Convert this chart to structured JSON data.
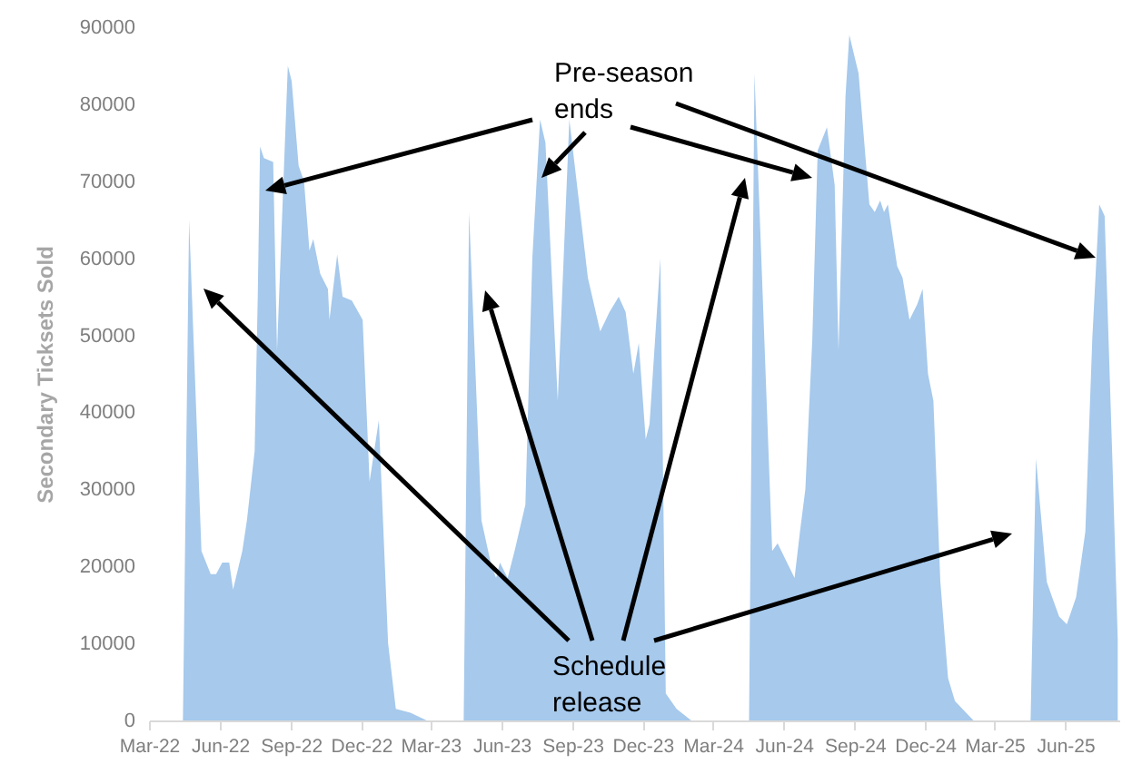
{
  "chart_data": {
    "type": "area",
    "ylabel": "Secondary Ticksets Sold",
    "annotations": [
      "Pre-season ends",
      "Schedule release"
    ],
    "x": [
      "2022-04-14",
      "2022-04-22",
      "2022-05-08",
      "2022-05-20",
      "2022-05-27",
      "2022-06-04",
      "2022-06-13",
      "2022-06-18",
      "2022-06-30",
      "2022-07-06",
      "2022-07-16",
      "2022-07-20",
      "2022-07-23",
      "2022-07-28",
      "2022-08-09",
      "2022-08-14",
      "2022-08-28",
      "2022-09-02",
      "2022-09-11",
      "2022-09-18",
      "2022-09-25",
      "2022-09-30",
      "2022-10-09",
      "2022-10-19",
      "2022-10-21",
      "2022-10-31",
      "2022-11-07",
      "2022-11-19",
      "2022-12-03",
      "2022-12-12",
      "2022-12-24",
      "2023-01-05",
      "2023-01-15",
      "2023-02-03",
      "2023-02-24",
      "2023-04-13",
      "2023-04-20",
      "2023-05-06",
      "2023-05-18",
      "2023-05-25",
      "2023-05-30",
      "2023-06-09",
      "2023-06-18",
      "2023-07-02",
      "2023-07-11",
      "2023-07-21",
      "2023-07-28",
      "2023-08-13",
      "2023-08-28",
      "2023-09-21",
      "2023-10-07",
      "2023-10-19",
      "2023-10-31",
      "2023-11-09",
      "2023-11-19",
      "2023-11-26",
      "2023-12-05",
      "2023-12-10",
      "2023-12-24",
      "2023-12-31",
      "2024-01-14",
      "2024-02-02",
      "2024-04-17",
      "2024-04-24",
      "2024-05-17",
      "2024-05-24",
      "2024-06-15",
      "2024-06-22",
      "2024-06-29",
      "2024-07-08",
      "2024-07-15",
      "2024-07-27",
      "2024-08-06",
      "2024-08-11",
      "2024-08-20",
      "2024-08-25",
      "2024-09-06",
      "2024-09-20",
      "2024-09-27",
      "2024-10-04",
      "2024-10-09",
      "2024-10-14",
      "2024-10-26",
      "2024-11-02",
      "2024-11-11",
      "2024-11-21",
      "2024-11-28",
      "2024-12-05",
      "2024-12-12",
      "2024-12-21",
      "2024-12-31",
      "2025-01-09",
      "2025-02-02",
      "2025-04-17",
      "2025-04-24",
      "2025-05-08",
      "2025-05-15",
      "2025-05-24",
      "2025-06-03",
      "2025-06-15",
      "2025-06-27",
      "2025-07-06",
      "2025-07-15",
      "2025-07-22",
      "2025-08-01",
      "2025-08-08"
    ],
    "series": [
      {
        "color": "#a6c9ec",
        "values": [
          0,
          65000,
          22000,
          19000,
          19000,
          20500,
          20500,
          17000,
          22000,
          26000,
          35000,
          55000,
          74500,
          73000,
          72500,
          48000,
          85000,
          83000,
          72000,
          70000,
          61000,
          62500,
          58000,
          56000,
          52000,
          60500,
          55000,
          54500,
          52000,
          31000,
          39000,
          10000,
          1500,
          1000,
          0,
          0,
          66000,
          26000,
          20500,
          18500,
          20500,
          18500,
          22000,
          28000,
          60000,
          78000,
          75000,
          41500,
          78000,
          57500,
          50500,
          53000,
          55000,
          53000,
          45000,
          49000,
          36500,
          38500,
          60000,
          3500,
          1500,
          0,
          0,
          84000,
          22000,
          23000,
          18500,
          24500,
          30000,
          49500,
          74000,
          77000,
          69500,
          48000,
          81000,
          89000,
          84000,
          67000,
          66000,
          67500,
          66000,
          67000,
          59000,
          57500,
          52000,
          54000,
          56000,
          45000,
          41500,
          18000,
          5500,
          2500,
          0,
          0,
          34000,
          18000,
          16000,
          13500,
          12500,
          16000,
          24500,
          49500,
          67000,
          65500,
          34000,
          10500
        ]
      }
    ],
    "xlim": [
      "2022-03-01",
      "2025-08-10"
    ],
    "xticks": [
      {
        "value": "2022-03-01",
        "label": "Mar-22"
      },
      {
        "value": "2022-06-01",
        "label": "Jun-22"
      },
      {
        "value": "2022-09-01",
        "label": "Sep-22"
      },
      {
        "value": "2022-12-01",
        "label": "Dec-22"
      },
      {
        "value": "2023-03-01",
        "label": "Mar-23"
      },
      {
        "value": "2023-06-01",
        "label": "Jun-23"
      },
      {
        "value": "2023-09-01",
        "label": "Sep-23"
      },
      {
        "value": "2023-12-01",
        "label": "Dec-23"
      },
      {
        "value": "2024-03-01",
        "label": "Mar-24"
      },
      {
        "value": "2024-06-01",
        "label": "Jun-24"
      },
      {
        "value": "2024-09-01",
        "label": "Sep-24"
      },
      {
        "value": "2024-12-01",
        "label": "Dec-24"
      },
      {
        "value": "2025-03-01",
        "label": "Mar-25"
      },
      {
        "value": "2025-06-01",
        "label": "Jun-25"
      }
    ],
    "ylim": [
      0,
      90000
    ],
    "yticks": [
      0,
      10000,
      20000,
      30000,
      40000,
      50000,
      60000,
      70000,
      80000,
      90000
    ],
    "grid": false
  }
}
